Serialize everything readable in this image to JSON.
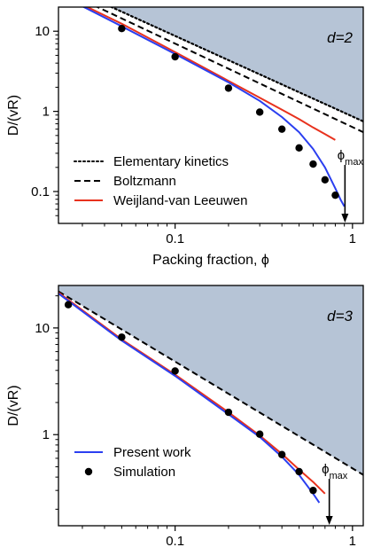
{
  "chart_data": [
    {
      "type": "line",
      "panel": "top",
      "annotation": "d=2",
      "xlabel": "Packing fraction, ϕ",
      "ylabel": "D/(vR)",
      "xscale": "log",
      "yscale": "log",
      "xlim": [
        0.022,
        1.15
      ],
      "ylim": [
        0.04,
        20
      ],
      "xtick_labels": [
        "0.1",
        "1"
      ],
      "ytick_labels": [
        "10",
        "1",
        "0.1"
      ],
      "phi_max_label": "ϕmax",
      "phi_max": 0.907,
      "legend_position": "bottom-left",
      "legend": [
        "Elementary kinetics",
        "Boltzmann",
        "Weijland-van Leeuwen"
      ],
      "series": [
        {
          "name": "Elementary kinetics",
          "style": "dotted",
          "color": "#000000",
          "x": [
            0.022,
            1.15
          ],
          "y": [
            40,
            0.75
          ]
        },
        {
          "name": "Boltzmann",
          "style": "dashed",
          "color": "#000000",
          "x": [
            0.022,
            1.15
          ],
          "y": [
            34,
            0.55
          ]
        },
        {
          "name": "Weijland-van Leeuwen",
          "style": "solid",
          "color": "#e8321e",
          "x": [
            0.022,
            0.05,
            0.1,
            0.2,
            0.3,
            0.4,
            0.5,
            0.6,
            0.7,
            0.8
          ],
          "y": [
            30,
            12.4,
            5.5,
            2.4,
            1.48,
            1.05,
            0.8,
            0.63,
            0.52,
            0.44
          ]
        },
        {
          "style": "solid",
          "color": "#2b3ff0",
          "x": [
            0.022,
            0.05,
            0.1,
            0.2,
            0.3,
            0.4,
            0.5,
            0.6,
            0.7,
            0.8,
            0.86,
            0.9
          ],
          "y": [
            29,
            11.5,
            5.2,
            2.3,
            1.35,
            0.85,
            0.55,
            0.34,
            0.2,
            0.11,
            0.078,
            0.065
          ]
        },
        {
          "name": "Simulation",
          "style": "markers",
          "color": "#000000",
          "x": [
            0.025,
            0.05,
            0.1,
            0.2,
            0.3,
            0.4,
            0.5,
            0.6,
            0.7,
            0.8
          ],
          "y": [
            22,
            10.8,
            4.8,
            1.95,
            0.98,
            0.6,
            0.35,
            0.22,
            0.14,
            0.09
          ]
        }
      ]
    },
    {
      "type": "line",
      "panel": "bottom",
      "annotation": "d=3",
      "xlabel": "Packing fraction, ϕ",
      "ylabel": "D/(vR)",
      "xscale": "log",
      "yscale": "log",
      "xlim": [
        0.022,
        1.15
      ],
      "ylim": [
        0.14,
        25
      ],
      "xtick_labels": [
        "0.1",
        "1"
      ],
      "ytick_labels": [
        "10",
        "1"
      ],
      "phi_max_label": "ϕmax",
      "phi_max": 0.74,
      "legend_position": "bottom-left",
      "legend": [
        "Present work",
        "Simulation"
      ],
      "series": [
        {
          "style": "dashed",
          "color": "#000000",
          "x": [
            0.022,
            1.15
          ],
          "y": [
            22,
            0.42
          ]
        },
        {
          "style": "solid",
          "color": "#e8321e",
          "x": [
            0.022,
            0.05,
            0.1,
            0.2,
            0.3,
            0.4,
            0.5,
            0.6,
            0.7
          ],
          "y": [
            21.5,
            7.8,
            3.65,
            1.62,
            0.98,
            0.66,
            0.47,
            0.36,
            0.28
          ]
        },
        {
          "name": "Present work",
          "style": "solid",
          "color": "#2b3ff0",
          "x": [
            0.022,
            0.05,
            0.1,
            0.2,
            0.3,
            0.4,
            0.5,
            0.6,
            0.65
          ],
          "y": [
            21,
            7.6,
            3.55,
            1.55,
            0.95,
            0.62,
            0.42,
            0.28,
            0.23
          ]
        },
        {
          "name": "Simulation",
          "style": "markers",
          "color": "#000000",
          "x": [
            0.025,
            0.05,
            0.1,
            0.2,
            0.3,
            0.4,
            0.5,
            0.6
          ],
          "y": [
            16.5,
            8.2,
            3.95,
            1.62,
            1.01,
            0.65,
            0.45,
            0.3
          ]
        }
      ]
    }
  ]
}
